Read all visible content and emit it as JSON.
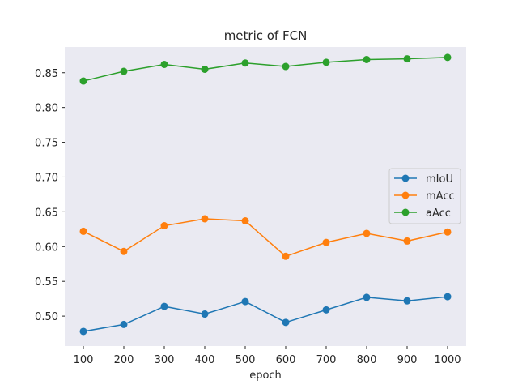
{
  "chart_data": {
    "type": "line",
    "title": "metric of FCN",
    "xlabel": "epoch",
    "ylabel": "",
    "x": [
      100,
      200,
      300,
      400,
      500,
      600,
      700,
      800,
      900,
      1000
    ],
    "x_tick_labels": [
      "100",
      "200",
      "300",
      "400",
      "500",
      "600",
      "700",
      "800",
      "900",
      "1000"
    ],
    "ylim": [
      0.457,
      0.887
    ],
    "y_ticks": [
      0.5,
      0.55,
      0.6,
      0.65,
      0.7,
      0.75,
      0.8,
      0.85
    ],
    "y_tick_labels": [
      "0.50",
      "0.55",
      "0.60",
      "0.65",
      "0.70",
      "0.75",
      "0.80",
      "0.85"
    ],
    "grid": false,
    "legend_position": "center-right",
    "background": "#eaeaf2",
    "series": [
      {
        "name": "mIoU",
        "color": "#1f77b4",
        "values": [
          0.478,
          0.488,
          0.514,
          0.503,
          0.521,
          0.491,
          0.509,
          0.527,
          0.522,
          0.528
        ]
      },
      {
        "name": "mAcc",
        "color": "#ff7f0e",
        "values": [
          0.622,
          0.593,
          0.63,
          0.64,
          0.637,
          0.586,
          0.606,
          0.619,
          0.608,
          0.621
        ]
      },
      {
        "name": "aAcc",
        "color": "#2ca02c",
        "values": [
          0.838,
          0.852,
          0.862,
          0.855,
          0.864,
          0.859,
          0.865,
          0.869,
          0.87,
          0.872
        ]
      }
    ]
  }
}
